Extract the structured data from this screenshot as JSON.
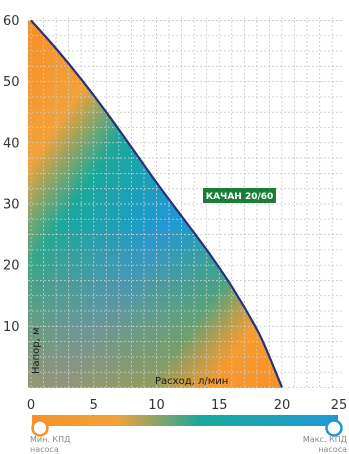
{
  "chart_data": {
    "type": "area",
    "x": [
      0,
      2,
      4,
      6,
      8,
      10,
      12,
      14,
      16,
      18,
      19,
      20
    ],
    "series": [
      {
        "name": "КАЧАН 20/60",
        "values": [
          60,
          55.4,
          50.4,
          45,
          39.3,
          33.5,
          28,
          22.5,
          16.5,
          9.5,
          5,
          0
        ]
      }
    ],
    "series_label": "КАЧАН 20/60",
    "xlabel": "Расход, л/мин",
    "ylabel": "Напор, м",
    "xlim": [
      0,
      25
    ],
    "ylim": [
      0,
      60
    ],
    "xticks": [
      "0",
      "5",
      "10",
      "15",
      "20",
      "25"
    ],
    "yticks": [
      "10",
      "20",
      "30",
      "40",
      "50",
      "60"
    ],
    "grid": true,
    "colorbar": {
      "min_label_line1": "Мин. КПД",
      "min_label_line2": "насоса",
      "max_label_line1": "Макс. КПД",
      "max_label_line2": "насоса"
    },
    "colors": {
      "curve": "#26337a",
      "low_efficiency": "#f7922b",
      "mid_efficiency": "#1aa89a",
      "high_efficiency": "#1f98d6",
      "badge": "#1b7d3a"
    }
  }
}
